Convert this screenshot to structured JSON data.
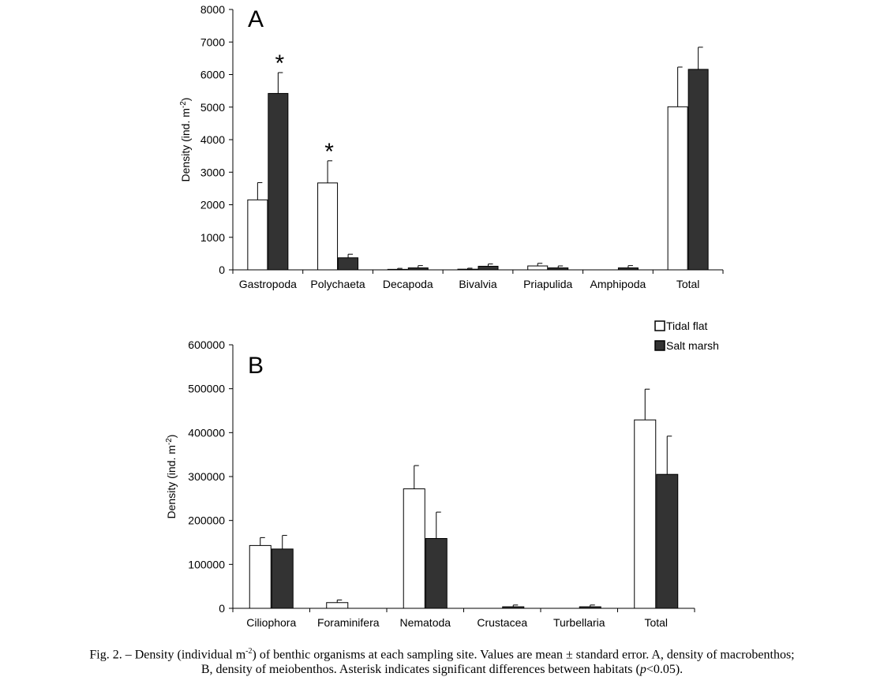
{
  "colors": {
    "tidal_flat_fill": "#ffffff",
    "salt_marsh_fill": "#333333",
    "stroke": "#000000"
  },
  "chart_data": [
    {
      "type": "bar",
      "panel_label": "A",
      "ylabel_main": "Density (ind. m",
      "ylabel_sup": "-2",
      "ylabel_end": ")",
      "ylim": [
        0,
        8000
      ],
      "yticks": [
        0,
        1000,
        2000,
        3000,
        4000,
        5000,
        6000,
        7000,
        8000
      ],
      "categories": [
        "Gastropoda",
        "Polychaeta",
        "Decapoda",
        "Bivalvia",
        "Priapulida",
        "Amphipoda",
        "Total"
      ],
      "series": [
        {
          "legend": "Tidal flat",
          "values": [
            2150,
            2670,
            15,
            20,
            120,
            0,
            5010
          ],
          "errors": [
            530,
            680,
            30,
            30,
            80,
            0,
            1220
          ]
        },
        {
          "legend": "Salt marsh",
          "values": [
            5420,
            370,
            60,
            110,
            60,
            60,
            6160
          ],
          "errors": [
            640,
            110,
            70,
            70,
            60,
            70,
            680
          ]
        }
      ],
      "significance": [
        "*",
        "*",
        "",
        "",
        "",
        "",
        ""
      ],
      "grid": false
    },
    {
      "type": "bar",
      "panel_label": "B",
      "ylabel_main": "Density (ind. m",
      "ylabel_sup": "-2",
      "ylabel_end": ")",
      "ylim": [
        0,
        600000
      ],
      "yticks": [
        0,
        100000,
        200000,
        300000,
        400000,
        500000,
        600000
      ],
      "categories": [
        "Ciliophora",
        "Foraminifera",
        "Nematoda",
        "Crustacea",
        "Turbellaria",
        "Total"
      ],
      "series": [
        {
          "legend": "Tidal flat",
          "values": [
            143000,
            13000,
            272000,
            0,
            0,
            429000
          ],
          "errors": [
            18000,
            6000,
            53000,
            0,
            0,
            70000
          ]
        },
        {
          "legend": "Salt marsh",
          "values": [
            135000,
            0,
            159000,
            3500,
            3500,
            305000
          ],
          "errors": [
            31000,
            0,
            60000,
            4000,
            4000,
            87000
          ]
        }
      ],
      "legend_entries": [
        "Tidal flat",
        "Salt marsh"
      ],
      "legend_position": "top-right",
      "grid": false
    }
  ],
  "caption": {
    "part1": "Fig. 2. – Density (individual m",
    "sup": "-2",
    "part2": ") of benthic organisms at each sampling site. Values are mean ± standard error. A, density of macrobenthos;",
    "line2a": "B, density of meiobenthos. Asterisk indicates significant differences between habitats (",
    "line2p": "p",
    "line2b": "<0.05)."
  }
}
